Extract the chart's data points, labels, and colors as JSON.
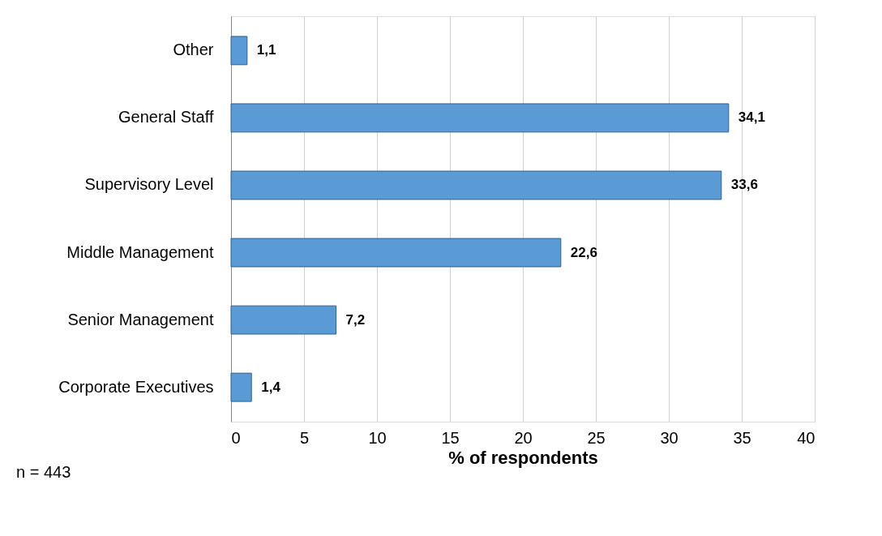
{
  "chart_data": {
    "type": "bar",
    "orientation": "horizontal",
    "xlabel": "% of respondents",
    "categories": [
      "Other",
      "General Staff",
      "Supervisory Level",
      "Middle Management",
      "Senior Management",
      "Corporate Executives"
    ],
    "values": [
      1.1,
      34.1,
      33.6,
      22.6,
      7.2,
      1.4
    ],
    "value_labels": [
      "1,1",
      "34,1",
      "33,6",
      "22,6",
      "7,2",
      "1,4"
    ],
    "color": "#5b9bd5",
    "xlim": [
      0,
      40
    ],
    "xticks": [
      0,
      5,
      10,
      15,
      20,
      25,
      30,
      35,
      40
    ],
    "grid": "x",
    "annotations": [
      "n = 443"
    ]
  }
}
